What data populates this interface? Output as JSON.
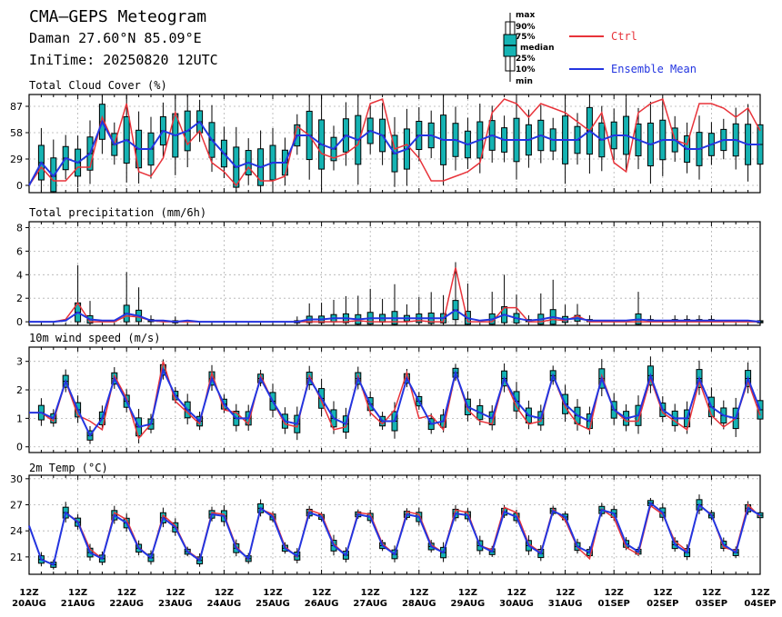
{
  "header": {
    "title": "CMA—GEPS Meteogram",
    "location": "Daman 27.60°N 85.09°E",
    "init_time": "IniTime: 20250820 12UTC"
  },
  "boxplot_key": [
    "max",
    "90%",
    "75%",
    "median",
    "25%",
    "10%",
    "min"
  ],
  "legend": [
    {
      "label": "Ctrl",
      "color": "#e8333a"
    },
    {
      "label": "Ensemble Mean",
      "color": "#2335e0"
    }
  ],
  "colors": {
    "box_fill": "#15b3b3",
    "ctrl": "#e8333a",
    "mean": "#2335e0",
    "grid": "#b0b0b0"
  },
  "x_axis": {
    "start": "2025-08-20T12Z",
    "end": "2025-09-04T12Z",
    "step_hours": 6,
    "tick_labels": [
      {
        "hour": "12Z",
        "date": "20AUG"
      },
      {
        "hour": "12Z",
        "date": "21AUG"
      },
      {
        "hour": "12Z",
        "date": "22AUG"
      },
      {
        "hour": "12Z",
        "date": "23AUG"
      },
      {
        "hour": "12Z",
        "date": "24AUG"
      },
      {
        "hour": "12Z",
        "date": "25AUG"
      },
      {
        "hour": "12Z",
        "date": "26AUG"
      },
      {
        "hour": "12Z",
        "date": "27AUG"
      },
      {
        "hour": "12Z",
        "date": "28AUG"
      },
      {
        "hour": "12Z",
        "date": "29AUG"
      },
      {
        "hour": "12Z",
        "date": "30AUG"
      },
      {
        "hour": "12Z",
        "date": "31AUG"
      },
      {
        "hour": "12Z",
        "date": "01SEP"
      },
      {
        "hour": "12Z",
        "date": "02SEP"
      },
      {
        "hour": "12Z",
        "date": "03SEP"
      },
      {
        "hour": "12Z",
        "date": "04SEP"
      }
    ]
  },
  "chart_data": [
    {
      "type": "boxplot-line",
      "title": "Total Cloud Cover (%)",
      "ylim": [
        -8,
        100
      ],
      "yticks": [
        0,
        29,
        58,
        87
      ],
      "grid": true,
      "series": [
        {
          "name": "Ctrl",
          "values": [
            0,
            20,
            5,
            5,
            20,
            20,
            75,
            45,
            90,
            15,
            10,
            30,
            80,
            45,
            60,
            25,
            15,
            0,
            20,
            5,
            5,
            10,
            65,
            55,
            35,
            30,
            35,
            45,
            90,
            95,
            40,
            45,
            30,
            5,
            5,
            10,
            15,
            25,
            80,
            95,
            90,
            75,
            90,
            85,
            80,
            70,
            60,
            80,
            25,
            15,
            80,
            90,
            95,
            50,
            45,
            90,
            90,
            85,
            75,
            85,
            60,
            40,
            75,
            15,
            50,
            85
          ]
        },
        {
          "name": "Ensemble Mean",
          "values": [
            0,
            25,
            10,
            30,
            25,
            35,
            70,
            45,
            50,
            40,
            40,
            60,
            55,
            60,
            70,
            50,
            35,
            20,
            25,
            20,
            25,
            25,
            55,
            55,
            45,
            40,
            55,
            50,
            60,
            55,
            35,
            40,
            55,
            55,
            50,
            50,
            45,
            50,
            55,
            50,
            50,
            50,
            55,
            50,
            50,
            50,
            60,
            50,
            55,
            55,
            50,
            45,
            50,
            50,
            40,
            40,
            45,
            50,
            50,
            45,
            45,
            50,
            60,
            55,
            60,
            65
          ]
        }
      ],
      "boxes": "ensemble spread per lead time (min/10%/25%/median/75%/90%/max)"
    },
    {
      "type": "boxplot-line",
      "title": "Total precipitation (mm/6h)",
      "ylim": [
        -0.3,
        8.5
      ],
      "yticks": [
        0,
        2,
        4,
        6,
        8
      ],
      "grid": true,
      "series": [
        {
          "name": "Ctrl",
          "values": [
            0,
            0,
            0,
            0.2,
            1.6,
            0,
            0,
            0,
            0.5,
            0.4,
            0.1,
            0,
            0,
            0,
            0,
            0,
            0,
            0,
            0,
            0,
            0,
            0,
            0,
            0,
            0,
            0,
            0,
            0.1,
            0,
            0,
            0,
            0,
            0.1,
            0,
            0,
            4.6,
            0,
            0,
            0,
            1.2,
            1.2,
            0,
            0,
            0.2,
            0.1,
            0.5,
            0,
            0,
            0,
            0,
            0,
            0,
            0,
            0,
            0,
            0,
            0,
            0,
            0,
            0,
            0,
            0,
            0,
            0,
            0,
            0
          ]
        },
        {
          "name": "Ensemble Mean",
          "values": [
            0,
            0,
            0,
            0.1,
            0.8,
            0.2,
            0.1,
            0.1,
            0.7,
            0.5,
            0.1,
            0.1,
            0,
            0.1,
            0,
            0,
            0,
            0,
            0,
            0,
            0,
            0,
            0,
            0.2,
            0.2,
            0.3,
            0.3,
            0.2,
            0.3,
            0.3,
            0.3,
            0.3,
            0.3,
            0.3,
            0.3,
            1.0,
            0.3,
            0.1,
            0.2,
            0.6,
            0.3,
            0.1,
            0.2,
            0.4,
            0.2,
            0.3,
            0.1,
            0.1,
            0.1,
            0.1,
            0.2,
            0.1,
            0.1,
            0.1,
            0.1,
            0.1,
            0.1,
            0.1,
            0.1,
            0.1,
            0,
            0.1,
            0,
            0.1,
            0,
            0
          ]
        }
      ]
    },
    {
      "type": "boxplot-line",
      "title": "10m wind speed (m/s)",
      "ylim": [
        -0.2,
        3.5
      ],
      "yticks": [
        0,
        1,
        2,
        3
      ],
      "grid": true,
      "series": [
        {
          "name": "Ctrl",
          "values": [
            1.2,
            1.2,
            0.9,
            2.3,
            1.1,
            0.9,
            0.6,
            2.5,
            1.7,
            0.3,
            0.8,
            3.0,
            1.6,
            1.2,
            0.8,
            2.6,
            1.3,
            1.2,
            0.8,
            2.5,
            1.6,
            0.8,
            0.7,
            2.5,
            1.6,
            0.6,
            0.7,
            2.5,
            1.2,
            0.8,
            1.3,
            2.6,
            1.0,
            1.1,
            0.6,
            2.6,
            1.3,
            0.9,
            0.8,
            2.4,
            1.4,
            0.8,
            0.9,
            2.5,
            1.4,
            0.8,
            0.6,
            2.5,
            1.3,
            0.9,
            0.9,
            2.4,
            1.2,
            0.9,
            0.6,
            2.3,
            1.1,
            0.7,
            1.0,
            2.3,
            1.1,
            0.6,
            0.8,
            2.3,
            1.0,
            0.9
          ]
        },
        {
          "name": "Ensemble Mean",
          "values": [
            1.2,
            1.2,
            1.0,
            2.3,
            1.3,
            0.4,
            1.0,
            2.4,
            1.6,
            0.7,
            0.8,
            2.7,
            1.8,
            1.3,
            0.9,
            2.4,
            1.5,
            1.0,
            1.0,
            2.4,
            1.6,
            0.9,
            0.8,
            2.4,
            1.7,
            1.0,
            0.8,
            2.4,
            1.5,
            0.9,
            0.9,
            2.4,
            1.6,
            0.8,
            0.9,
            2.6,
            1.4,
            1.2,
            1.0,
            2.4,
            1.6,
            1.1,
            1.0,
            2.5,
            1.5,
            1.1,
            0.9,
            2.4,
            1.3,
            1.0,
            1.1,
            2.5,
            1.3,
            1.0,
            1.0,
            2.4,
            1.4,
            1.1,
            1.0,
            2.4,
            1.3,
            1.0,
            1.0,
            2.5,
            1.4,
            1.3
          ]
        }
      ]
    },
    {
      "type": "boxplot-line",
      "title": "2m Temp (°C)",
      "ylim": [
        19,
        30.4
      ],
      "yticks": [
        21,
        24,
        27,
        30
      ],
      "grid": true,
      "series": [
        {
          "name": "Ctrl",
          "values": [
            24.6,
            20.7,
            20.1,
            26.1,
            25.1,
            21.9,
            20.8,
            26.1,
            25.3,
            22.1,
            20.9,
            25.8,
            24.6,
            21.7,
            20.7,
            26.1,
            25.9,
            22.2,
            20.7,
            26.5,
            25.9,
            22.2,
            21.0,
            26.4,
            25.9,
            22.5,
            21.2,
            26.1,
            25.9,
            22.5,
            21.3,
            26.2,
            25.9,
            22.4,
            21.5,
            26.4,
            26.1,
            22.3,
            21.8,
            26.7,
            26.1,
            22.5,
            21.5,
            26.5,
            25.2,
            22.1,
            20.8,
            26.5,
            25.5,
            22.1,
            21.3,
            26.9,
            25.9,
            22.8,
            21.7,
            26.9,
            25.9,
            22.1,
            21.7,
            27.0,
            25.6,
            22.1,
            21.3,
            26.3,
            25.7,
            25.3
          ]
        },
        {
          "name": "Ensemble Mean",
          "values": [
            24.6,
            20.7,
            20.1,
            26.1,
            25.0,
            21.5,
            20.8,
            25.8,
            24.9,
            22.0,
            20.9,
            25.5,
            24.4,
            21.6,
            20.6,
            25.9,
            25.7,
            22.0,
            20.8,
            26.6,
            25.6,
            22.0,
            21.1,
            26.1,
            25.6,
            22.3,
            21.2,
            25.9,
            25.6,
            22.3,
            21.3,
            25.9,
            25.6,
            22.2,
            21.5,
            26.0,
            25.8,
            22.3,
            21.6,
            26.2,
            25.6,
            22.3,
            21.4,
            26.3,
            25.6,
            22.2,
            21.5,
            26.4,
            26.0,
            22.5,
            21.6,
            27.2,
            26.1,
            22.4,
            21.5,
            27.0,
            25.8,
            22.4,
            21.5,
            26.6,
            25.8,
            22.3,
            21.5,
            26.6,
            25.9,
            25.8
          ]
        }
      ]
    }
  ]
}
